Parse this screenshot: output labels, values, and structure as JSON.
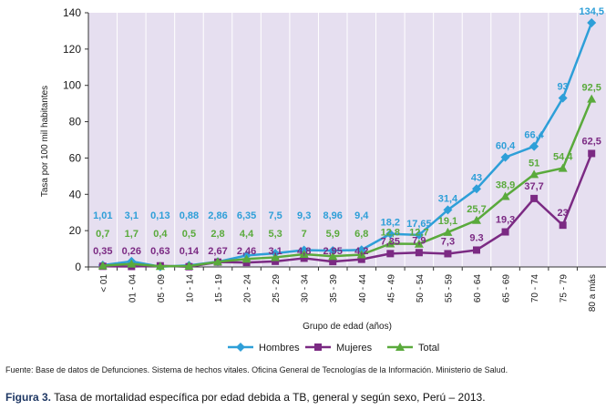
{
  "chart_data": {
    "type": "line",
    "title": "",
    "xlabel": "Grupo de edad (años)",
    "ylabel": "Tasa por 100 mil habitantes",
    "ylim": [
      0,
      140
    ],
    "yticks": [
      "0",
      "20",
      "40",
      "60",
      "80",
      "100",
      "120",
      "140"
    ],
    "grid": "vertical",
    "legend_position": "bottom",
    "categories": [
      "< 01",
      "01 - 04",
      "05 - 09",
      "10 - 14",
      "15 - 19",
      "20 - 24",
      "25 - 29",
      "30 - 34",
      "35 - 39",
      "40 - 44",
      "45 - 49",
      "50 - 54",
      "55 - 59",
      "60 - 64",
      "65 - 69",
      "70 - 74",
      "75 - 79",
      "80 a más"
    ],
    "series": [
      {
        "name": "Hombres",
        "color": "#2e9fd8",
        "marker": "diamond",
        "values": [
          1.01,
          3.1,
          0.13,
          0.88,
          2.86,
          6.35,
          7.5,
          9.3,
          8.96,
          9.4,
          18.2,
          17.65,
          31.4,
          43,
          60.4,
          66.4,
          93,
          134.5
        ],
        "labels": [
          "1,01",
          "3,1",
          "0,13",
          "0,88",
          "2,86",
          "6,35",
          "7,5",
          "9,3",
          "8,96",
          "9,4",
          "18,2",
          "17,65",
          "31,4",
          "43",
          "60,4",
          "66,4",
          "93",
          "134,5"
        ]
      },
      {
        "name": "Mujeres",
        "color": "#7b2a83",
        "marker": "square",
        "values": [
          0.35,
          0.26,
          0.63,
          0.14,
          2.67,
          2.46,
          3.1,
          4.8,
          2.95,
          4.2,
          7.35,
          7.9,
          7.3,
          9.3,
          19.3,
          37.7,
          23,
          62.5
        ],
        "labels": [
          "0,35",
          "0,26",
          "0,63",
          "0,14",
          "2,67",
          "2,46",
          "3,1",
          "4,8",
          "2,95",
          "4,2",
          "7,35",
          "7,9",
          "7,3",
          "9.3",
          "19,3",
          "37,7",
          "23",
          "62,5"
        ]
      },
      {
        "name": "Total",
        "color": "#5aaa3c",
        "marker": "triangle",
        "values": [
          0.7,
          1.7,
          0.4,
          0.5,
          2.8,
          4.4,
          5.3,
          7,
          5.9,
          6.8,
          12.8,
          12.7,
          19.1,
          25.7,
          38.9,
          51,
          54.4,
          92.5
        ],
        "labels": [
          "0,7",
          "1,7",
          "0,4",
          "0,5",
          "2,8",
          "4,4",
          "5,3",
          "7",
          "5,9",
          "6,8",
          "12,8",
          "12,7",
          "19,1",
          "25,7",
          "38,9",
          "51",
          "54,4",
          "92,5"
        ]
      }
    ]
  },
  "colors": {
    "plot_background": "#e6dff0",
    "grid_line": "#ffffff"
  },
  "captions": {
    "source": "Fuente: Base de datos de Defunciones. Sistema de hechos vitales. Oficina General de Tecnologías de la Información. Ministerio de Salud.",
    "figure_label": "Figura 3.",
    "figure_text": " Tasa de mortalidad específica por edad debida a TB, general y según sexo, Perú – 2013."
  }
}
